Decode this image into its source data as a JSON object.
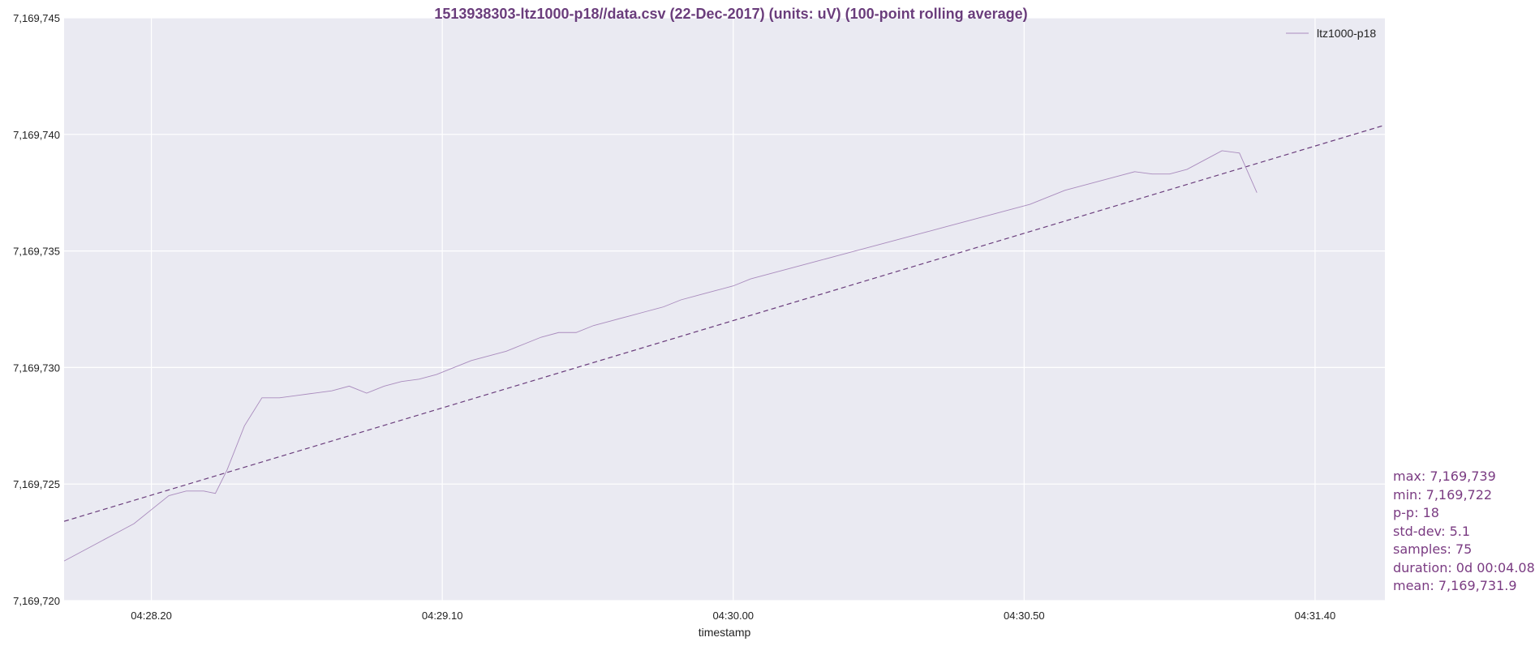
{
  "chart_data": {
    "type": "line",
    "title": "1513938303-ltz1000-p18//data.csv (22-Dec-2017) (units: uV) (100-point rolling average)",
    "xlabel": "timestamp",
    "ylabel": "",
    "x_range": [
      "04:28:05",
      "04:31:52"
    ],
    "ylim": [
      7169720,
      7169745
    ],
    "y_ticks": [
      7169720,
      7169725,
      7169730,
      7169735,
      7169740,
      7169745
    ],
    "y_tick_labels": [
      "7,169,720",
      "7,169,725",
      "7,169,730",
      "7,169,735",
      "7,169,740",
      "7,169,745"
    ],
    "x_ticks": [
      "04:28:20",
      "04:29:10",
      "04:30:00",
      "04:30:50",
      "04:31:40"
    ],
    "x_tick_labels": [
      "04:28.20",
      "04:29.10",
      "04:30.00",
      "04:30.50",
      "04:31.40"
    ],
    "grid": true,
    "legend_position": "top-right",
    "series": [
      {
        "name": "ltz1000-p18",
        "color": "#a98bbd",
        "points": [
          [
            "04:28:05",
            7169721.7
          ],
          [
            "04:28:08",
            7169722.1
          ],
          [
            "04:28:11",
            7169722.5
          ],
          [
            "04:28:14",
            7169722.9
          ],
          [
            "04:28:17",
            7169723.3
          ],
          [
            "04:28:20",
            7169723.9
          ],
          [
            "04:28:23",
            7169724.5
          ],
          [
            "04:28:26",
            7169724.7
          ],
          [
            "04:28:29",
            7169724.7
          ],
          [
            "04:28:31",
            7169724.6
          ],
          [
            "04:28:33",
            7169725.6
          ],
          [
            "04:28:36",
            7169727.5
          ],
          [
            "04:28:39",
            7169728.7
          ],
          [
            "04:28:42",
            7169728.7
          ],
          [
            "04:28:45",
            7169728.8
          ],
          [
            "04:28:48",
            7169728.9
          ],
          [
            "04:28:51",
            7169729.0
          ],
          [
            "04:28:54",
            7169729.2
          ],
          [
            "04:28:57",
            7169728.9
          ],
          [
            "04:29:00",
            7169729.2
          ],
          [
            "04:29:03",
            7169729.4
          ],
          [
            "04:29:06",
            7169729.5
          ],
          [
            "04:29:09",
            7169729.7
          ],
          [
            "04:29:12",
            7169730.0
          ],
          [
            "04:29:15",
            7169730.3
          ],
          [
            "04:29:18",
            7169730.5
          ],
          [
            "04:29:21",
            7169730.7
          ],
          [
            "04:29:24",
            7169731.0
          ],
          [
            "04:29:27",
            7169731.3
          ],
          [
            "04:29:30",
            7169731.5
          ],
          [
            "04:29:33",
            7169731.5
          ],
          [
            "04:29:36",
            7169731.8
          ],
          [
            "04:29:39",
            7169732.0
          ],
          [
            "04:29:42",
            7169732.2
          ],
          [
            "04:29:45",
            7169732.4
          ],
          [
            "04:29:48",
            7169732.6
          ],
          [
            "04:29:51",
            7169732.9
          ],
          [
            "04:29:54",
            7169733.1
          ],
          [
            "04:29:57",
            7169733.3
          ],
          [
            "04:30:00",
            7169733.5
          ],
          [
            "04:30:03",
            7169733.8
          ],
          [
            "04:30:06",
            7169734.0
          ],
          [
            "04:30:09",
            7169734.2
          ],
          [
            "04:30:12",
            7169734.4
          ],
          [
            "04:30:15",
            7169734.6
          ],
          [
            "04:30:18",
            7169734.8
          ],
          [
            "04:30:21",
            7169735.0
          ],
          [
            "04:30:24",
            7169735.2
          ],
          [
            "04:30:27",
            7169735.4
          ],
          [
            "04:30:30",
            7169735.6
          ],
          [
            "04:30:33",
            7169735.8
          ],
          [
            "04:30:36",
            7169736.0
          ],
          [
            "04:30:39",
            7169736.2
          ],
          [
            "04:30:42",
            7169736.4
          ],
          [
            "04:30:45",
            7169736.6
          ],
          [
            "04:30:48",
            7169736.8
          ],
          [
            "04:30:51",
            7169737.0
          ],
          [
            "04:30:54",
            7169737.3
          ],
          [
            "04:30:57",
            7169737.6
          ],
          [
            "04:31:00",
            7169737.8
          ],
          [
            "04:31:03",
            7169738.0
          ],
          [
            "04:31:06",
            7169738.2
          ],
          [
            "04:31:09",
            7169738.4
          ],
          [
            "04:31:12",
            7169738.3
          ],
          [
            "04:31:15",
            7169738.3
          ],
          [
            "04:31:18",
            7169738.5
          ],
          [
            "04:31:21",
            7169738.9
          ],
          [
            "04:31:24",
            7169739.3
          ],
          [
            "04:31:27",
            7169739.2
          ],
          [
            "04:31:30",
            7169737.5
          ]
        ]
      }
    ],
    "trend_line": {
      "style": "dashed",
      "color": "#6a3d7c",
      "points": [
        [
          "04:28:05",
          7169723.4
        ],
        [
          "04:31:52",
          7169740.4
        ]
      ]
    },
    "stats": [
      "max: 7,169,739",
      "min: 7,169,722",
      "p-p: 18",
      "std-dev: 5.1",
      "samples: 75",
      "duration: 0d 00:04.08",
      "mean: 7,169,731.9"
    ]
  },
  "colors": {
    "plot_background": "#eaeaf2",
    "grid": "#ffffff",
    "title": "#6a3d7c",
    "stats_text": "#7a3b82",
    "series_line": "#a98bbd",
    "trend_line": "#6a3d7c"
  }
}
